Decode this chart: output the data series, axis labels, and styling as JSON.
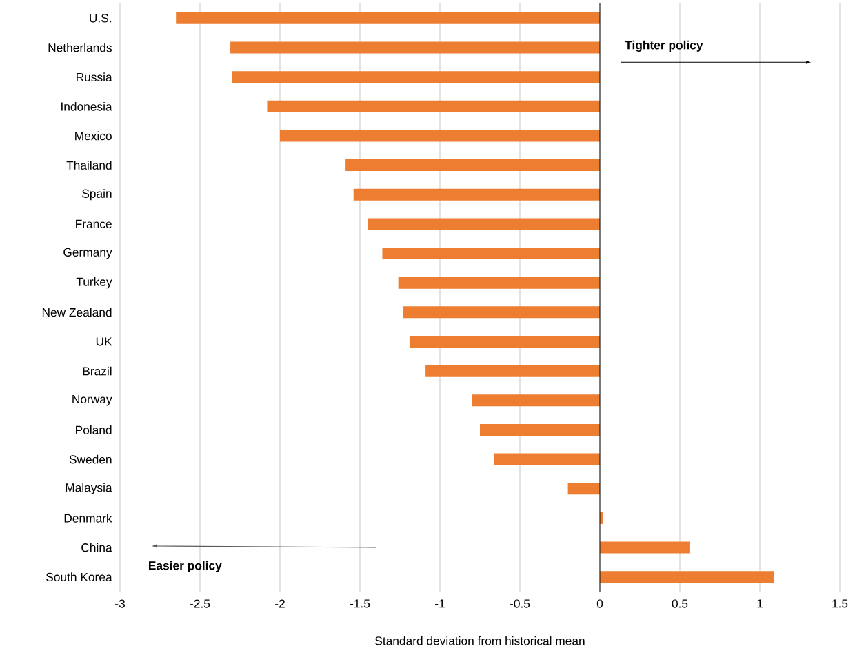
{
  "chart_data": {
    "type": "bar",
    "orientation": "horizontal",
    "xlabel": "Standard deviation from historical mean",
    "categories": [
      "U.S.",
      "Netherlands",
      "Russia",
      "Indonesia",
      "Mexico",
      "Thailand",
      "Spain",
      "France",
      "Germany",
      "Turkey",
      "New Zealand",
      "UK",
      "Brazil",
      "Norway",
      "Poland",
      "Sweden",
      "Malaysia",
      "Denmark",
      "China",
      "South Korea"
    ],
    "values": [
      -2.65,
      -2.31,
      -2.3,
      -2.08,
      -2.0,
      -1.59,
      -1.54,
      -1.45,
      -1.36,
      -1.26,
      -1.23,
      -1.19,
      -1.09,
      -0.8,
      -0.75,
      -0.66,
      -0.2,
      0.02,
      0.56,
      1.09
    ],
    "color": "#ed7d31",
    "xlim": [
      -3,
      1.5
    ],
    "xticks": [
      -3,
      -2.5,
      -2,
      -1.5,
      -1,
      -0.5,
      0,
      0.5,
      1,
      1.5
    ],
    "grid": "x",
    "annotations": [
      "Tighter policy",
      "Easier policy"
    ]
  }
}
